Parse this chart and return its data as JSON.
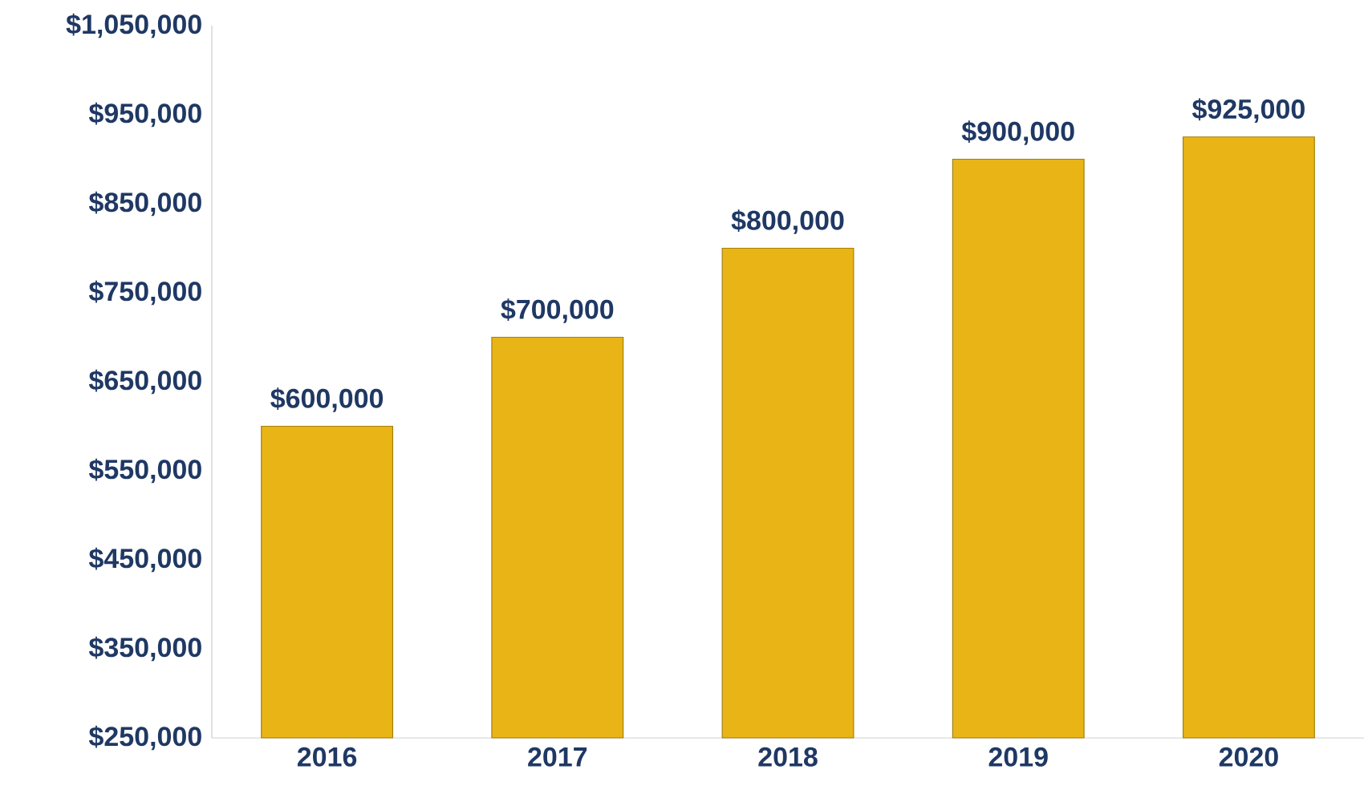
{
  "chart_data": {
    "type": "bar",
    "categories": [
      "2016",
      "2017",
      "2018",
      "2019",
      "2020"
    ],
    "values": [
      600000,
      700000,
      800000,
      900000,
      925000
    ],
    "value_labels": [
      "$600,000",
      "$700,000",
      "$800,000",
      "$900,000",
      "$925,000"
    ],
    "color": "#e9b516",
    "ylim": [
      250000,
      1050000
    ],
    "yticks": [
      {
        "value": 250000,
        "label": "$250,000"
      },
      {
        "value": 350000,
        "label": "$350,000"
      },
      {
        "value": 450000,
        "label": "$450,000"
      },
      {
        "value": 550000,
        "label": "$550,000"
      },
      {
        "value": 650000,
        "label": "$650,000"
      },
      {
        "value": 750000,
        "label": "$750,000"
      },
      {
        "value": 850000,
        "label": "$850,000"
      },
      {
        "value": 950000,
        "label": "$950,000"
      },
      {
        "value": 1050000,
        "label": "$1,050,000"
      }
    ]
  }
}
